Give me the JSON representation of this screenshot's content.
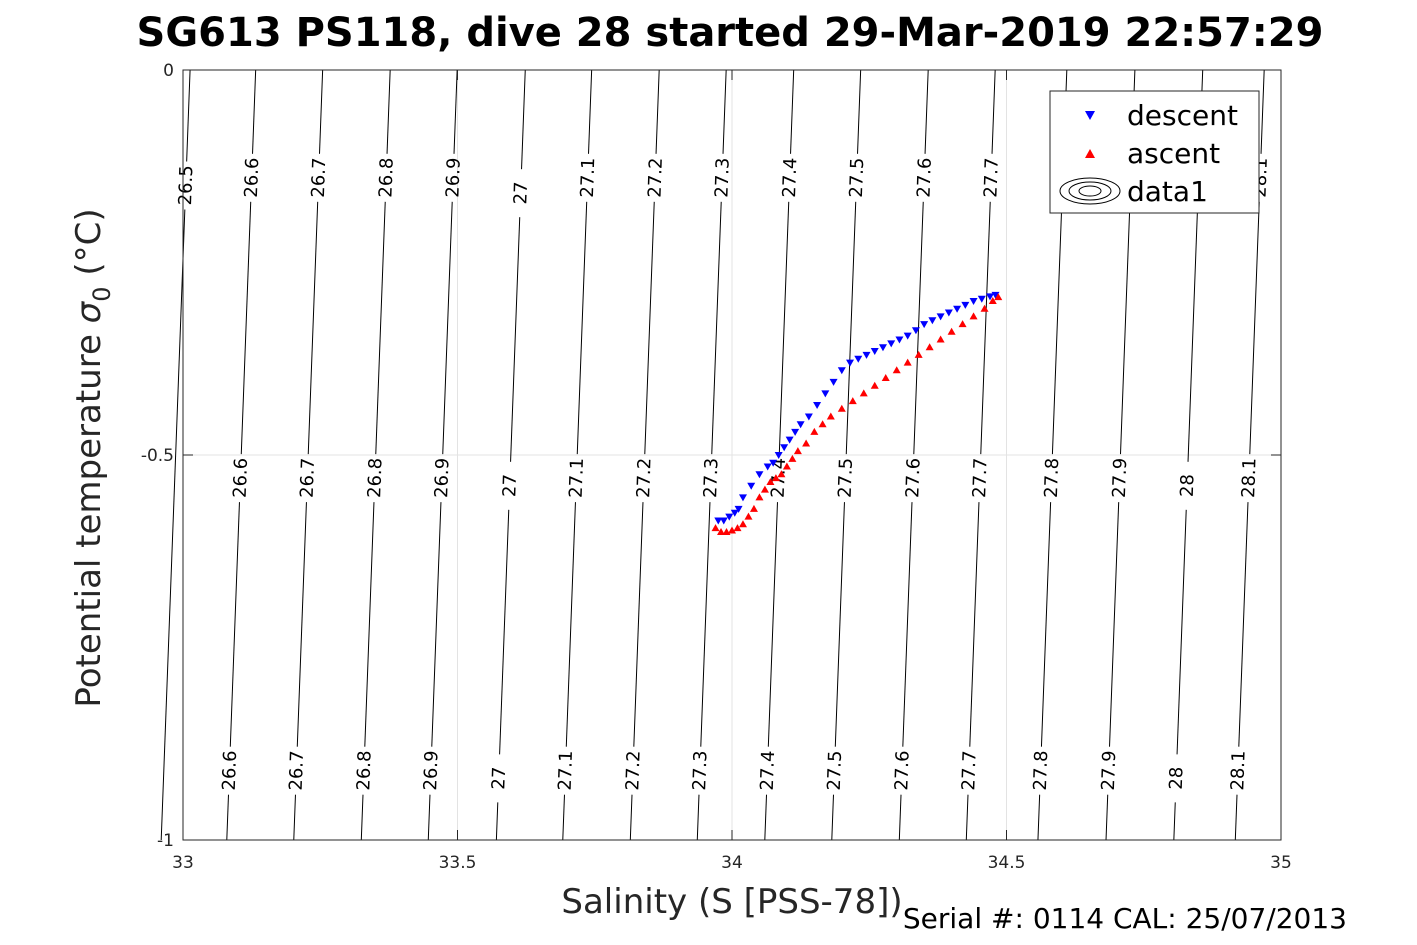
{
  "chart_data": {
    "type": "scatter",
    "title": "SG613 PS118, dive 28 started 29-Mar-2019 22:57:29",
    "xlabel": "Salinity (S [PSS-78])",
    "ylabel_main": "Potential temperature ",
    "ylabel_sigma": "σ",
    "ylabel_sub": "0",
    "ylabel_units": " (°C)",
    "xlim": [
      33,
      35
    ],
    "ylim": [
      -1,
      0
    ],
    "x_ticks": [
      33,
      33.5,
      34,
      34.5,
      35
    ],
    "x_tick_labels": [
      "33",
      "33.5",
      "34",
      "34.5",
      "35"
    ],
    "y_ticks": [
      0,
      -0.5,
      -1
    ],
    "y_tick_labels": [
      "0",
      "-0.5",
      "-1"
    ],
    "grid": true,
    "legend_position": "top-right",
    "legend": [
      {
        "label": "descent",
        "color": "#0000ff",
        "marker": "triangle-down"
      },
      {
        "label": "ascent",
        "color": "#ff0000",
        "marker": "triangle-up"
      },
      {
        "label": "data1",
        "color": "#000000",
        "marker": "contour"
      }
    ],
    "contours": [
      {
        "level": "26.5",
        "labels": [
          [
            33.005,
            -0.15
          ]
        ]
      },
      {
        "level": "26.6",
        "labels": [
          [
            33.125,
            -0.14
          ],
          [
            33.105,
            -0.53
          ],
          [
            33.085,
            -0.91
          ]
        ]
      },
      {
        "level": "26.7",
        "labels": [
          [
            33.247,
            -0.14
          ],
          [
            33.228,
            -0.53
          ],
          [
            33.208,
            -0.91
          ]
        ]
      },
      {
        "level": "26.8",
        "labels": [
          [
            33.37,
            -0.14
          ],
          [
            33.351,
            -0.53
          ],
          [
            33.332,
            -0.91
          ]
        ]
      },
      {
        "level": "26.9",
        "labels": [
          [
            33.492,
            -0.14
          ],
          [
            33.474,
            -0.53
          ],
          [
            33.455,
            -0.91
          ]
        ]
      },
      {
        "level": "27",
        "labels": [
          [
            33.615,
            -0.16
          ],
          [
            33.598,
            -0.54
          ],
          [
            33.58,
            -0.92
          ]
        ]
      },
      {
        "level": "27.1",
        "labels": [
          [
            33.737,
            -0.14
          ],
          [
            33.72,
            -0.53
          ],
          [
            33.703,
            -0.91
          ]
        ]
      },
      {
        "level": "27.2",
        "labels": [
          [
            33.86,
            -0.14
          ],
          [
            33.843,
            -0.53
          ],
          [
            33.827,
            -0.91
          ]
        ]
      },
      {
        "level": "27.3",
        "labels": [
          [
            33.982,
            -0.14
          ],
          [
            33.966,
            -0.53
          ],
          [
            33.951,
            -0.91
          ]
        ]
      },
      {
        "level": "27.4",
        "labels": [
          [
            34.105,
            -0.14
          ],
          [
            34.09,
            -0.53
          ],
          [
            34.075,
            -0.91
          ]
        ]
      },
      {
        "level": "27.5",
        "labels": [
          [
            34.227,
            -0.14
          ],
          [
            34.213,
            -0.53
          ],
          [
            34.198,
            -0.91
          ]
        ]
      },
      {
        "level": "27.6",
        "labels": [
          [
            34.35,
            -0.14
          ],
          [
            34.336,
            -0.53
          ],
          [
            34.322,
            -0.91
          ]
        ]
      },
      {
        "level": "27.7",
        "labels": [
          [
            34.472,
            -0.14
          ],
          [
            34.459,
            -0.53
          ],
          [
            34.445,
            -0.91
          ]
        ]
      },
      {
        "level": "27.8",
        "labels": [
          [
            34.582,
            -0.53
          ],
          [
            34.569,
            -0.91
          ]
        ]
      },
      {
        "level": "27.9",
        "labels": [
          [
            34.706,
            -0.53
          ],
          [
            34.693,
            -0.91
          ]
        ]
      },
      {
        "level": "28",
        "labels": [
          [
            34.829,
            -0.54
          ],
          [
            34.817,
            -0.92
          ]
        ]
      },
      {
        "level": "28.1",
        "labels": [
          [
            34.962,
            -0.14
          ],
          [
            34.952,
            -0.53
          ],
          [
            34.94,
            -0.91
          ]
        ]
      }
    ],
    "series": [
      {
        "name": "descent",
        "color": "#0000ff",
        "marker": "triangle-down",
        "x": [
          33.975,
          33.985,
          33.995,
          34.005,
          34.012,
          34.02,
          34.035,
          34.05,
          34.065,
          34.075,
          34.085,
          34.095,
          34.105,
          34.115,
          34.125,
          34.14,
          34.155,
          34.17,
          34.185,
          34.2,
          34.215,
          34.23,
          34.245,
          34.26,
          34.275,
          34.29,
          34.305,
          34.32,
          34.335,
          34.35,
          34.365,
          34.38,
          34.395,
          34.41,
          34.425,
          34.44,
          34.455,
          34.47,
          34.48
        ],
        "y": [
          -0.585,
          -0.585,
          -0.58,
          -0.575,
          -0.57,
          -0.555,
          -0.54,
          -0.525,
          -0.515,
          -0.51,
          -0.5,
          -0.49,
          -0.48,
          -0.47,
          -0.46,
          -0.45,
          -0.435,
          -0.42,
          -0.405,
          -0.39,
          -0.38,
          -0.375,
          -0.37,
          -0.365,
          -0.36,
          -0.355,
          -0.35,
          -0.345,
          -0.338,
          -0.33,
          -0.325,
          -0.32,
          -0.315,
          -0.31,
          -0.305,
          -0.3,
          -0.297,
          -0.294,
          -0.292
        ]
      },
      {
        "name": "ascent",
        "color": "#ff0000",
        "marker": "triangle-up",
        "x": [
          33.97,
          33.98,
          33.99,
          34.0,
          34.01,
          34.02,
          34.03,
          34.04,
          34.05,
          34.06,
          34.07,
          34.08,
          34.09,
          34.1,
          34.11,
          34.12,
          34.135,
          34.15,
          34.165,
          34.18,
          34.2,
          34.22,
          34.24,
          34.26,
          34.28,
          34.3,
          34.32,
          34.34,
          34.36,
          34.38,
          34.4,
          34.42,
          34.44,
          34.46,
          34.475,
          34.485
        ],
        "y": [
          -0.595,
          -0.6,
          -0.6,
          -0.598,
          -0.595,
          -0.59,
          -0.58,
          -0.57,
          -0.555,
          -0.545,
          -0.535,
          -0.53,
          -0.525,
          -0.515,
          -0.505,
          -0.495,
          -0.485,
          -0.47,
          -0.46,
          -0.45,
          -0.44,
          -0.43,
          -0.42,
          -0.41,
          -0.4,
          -0.39,
          -0.38,
          -0.37,
          -0.36,
          -0.35,
          -0.34,
          -0.33,
          -0.32,
          -0.31,
          -0.3,
          -0.295
        ]
      }
    ]
  },
  "footer": {
    "serial": "Serial #: 0114  CAL: 25/07/2013"
  }
}
